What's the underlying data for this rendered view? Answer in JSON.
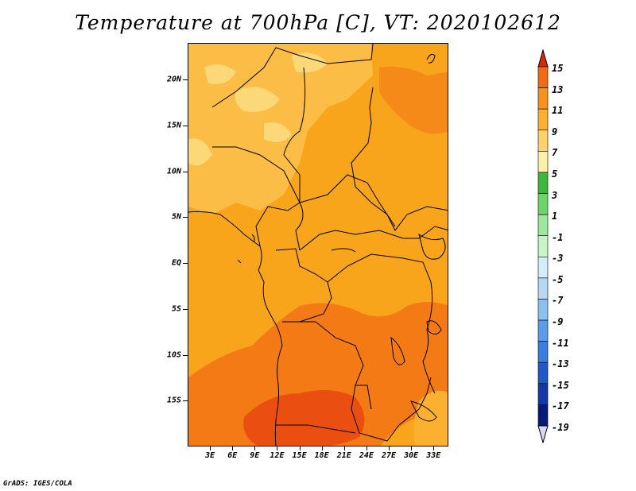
{
  "title": "Temperature at 700hPa [C], VT: 2020102612",
  "credit": "GrADS: IGES/COLA",
  "map": {
    "lon_range": [
      0,
      35
    ],
    "lat_range": [
      -20,
      24
    ],
    "lat_labels": [
      {
        "value": 20,
        "text": "20N"
      },
      {
        "value": 15,
        "text": "15N"
      },
      {
        "value": 10,
        "text": "10N"
      },
      {
        "value": 5,
        "text": "5N"
      },
      {
        "value": 0,
        "text": "EQ"
      },
      {
        "value": -5,
        "text": "5S"
      },
      {
        "value": -10,
        "text": "10S"
      },
      {
        "value": -15,
        "text": "15S"
      }
    ],
    "lon_labels": [
      {
        "value": 3,
        "text": "3E"
      },
      {
        "value": 6,
        "text": "6E"
      },
      {
        "value": 9,
        "text": "9E"
      },
      {
        "value": 12,
        "text": "12E"
      },
      {
        "value": 15,
        "text": "15E"
      },
      {
        "value": 18,
        "text": "18E"
      },
      {
        "value": 21,
        "text": "21E"
      },
      {
        "value": 24,
        "text": "24E"
      },
      {
        "value": 27,
        "text": "27E"
      },
      {
        "value": 30,
        "text": "30E"
      },
      {
        "value": 33,
        "text": "33E"
      }
    ]
  },
  "colorbar": {
    "levels": [
      "15",
      "13",
      "11",
      "9",
      "7",
      "5",
      "3",
      "1",
      "-1",
      "-3",
      "-5",
      "-7",
      "-9",
      "-11",
      "-13",
      "-15",
      "-17",
      "-19"
    ],
    "colors": [
      "#e8380e",
      "#f26a12",
      "#f7921a",
      "#fbb030",
      "#fdd26a",
      "#fff0a8",
      "#3cb83c",
      "#6cd66c",
      "#9ce89c",
      "#c8f5c8",
      "#d6ecfa",
      "#b4d8f5",
      "#8cc0f0",
      "#5a9cea",
      "#3a7ce0",
      "#2058c8",
      "#1438a8",
      "#0a1a78"
    ],
    "top_arrow_color": "#d42a0a",
    "bottom_arrow_color": "#d8d8f8"
  }
}
